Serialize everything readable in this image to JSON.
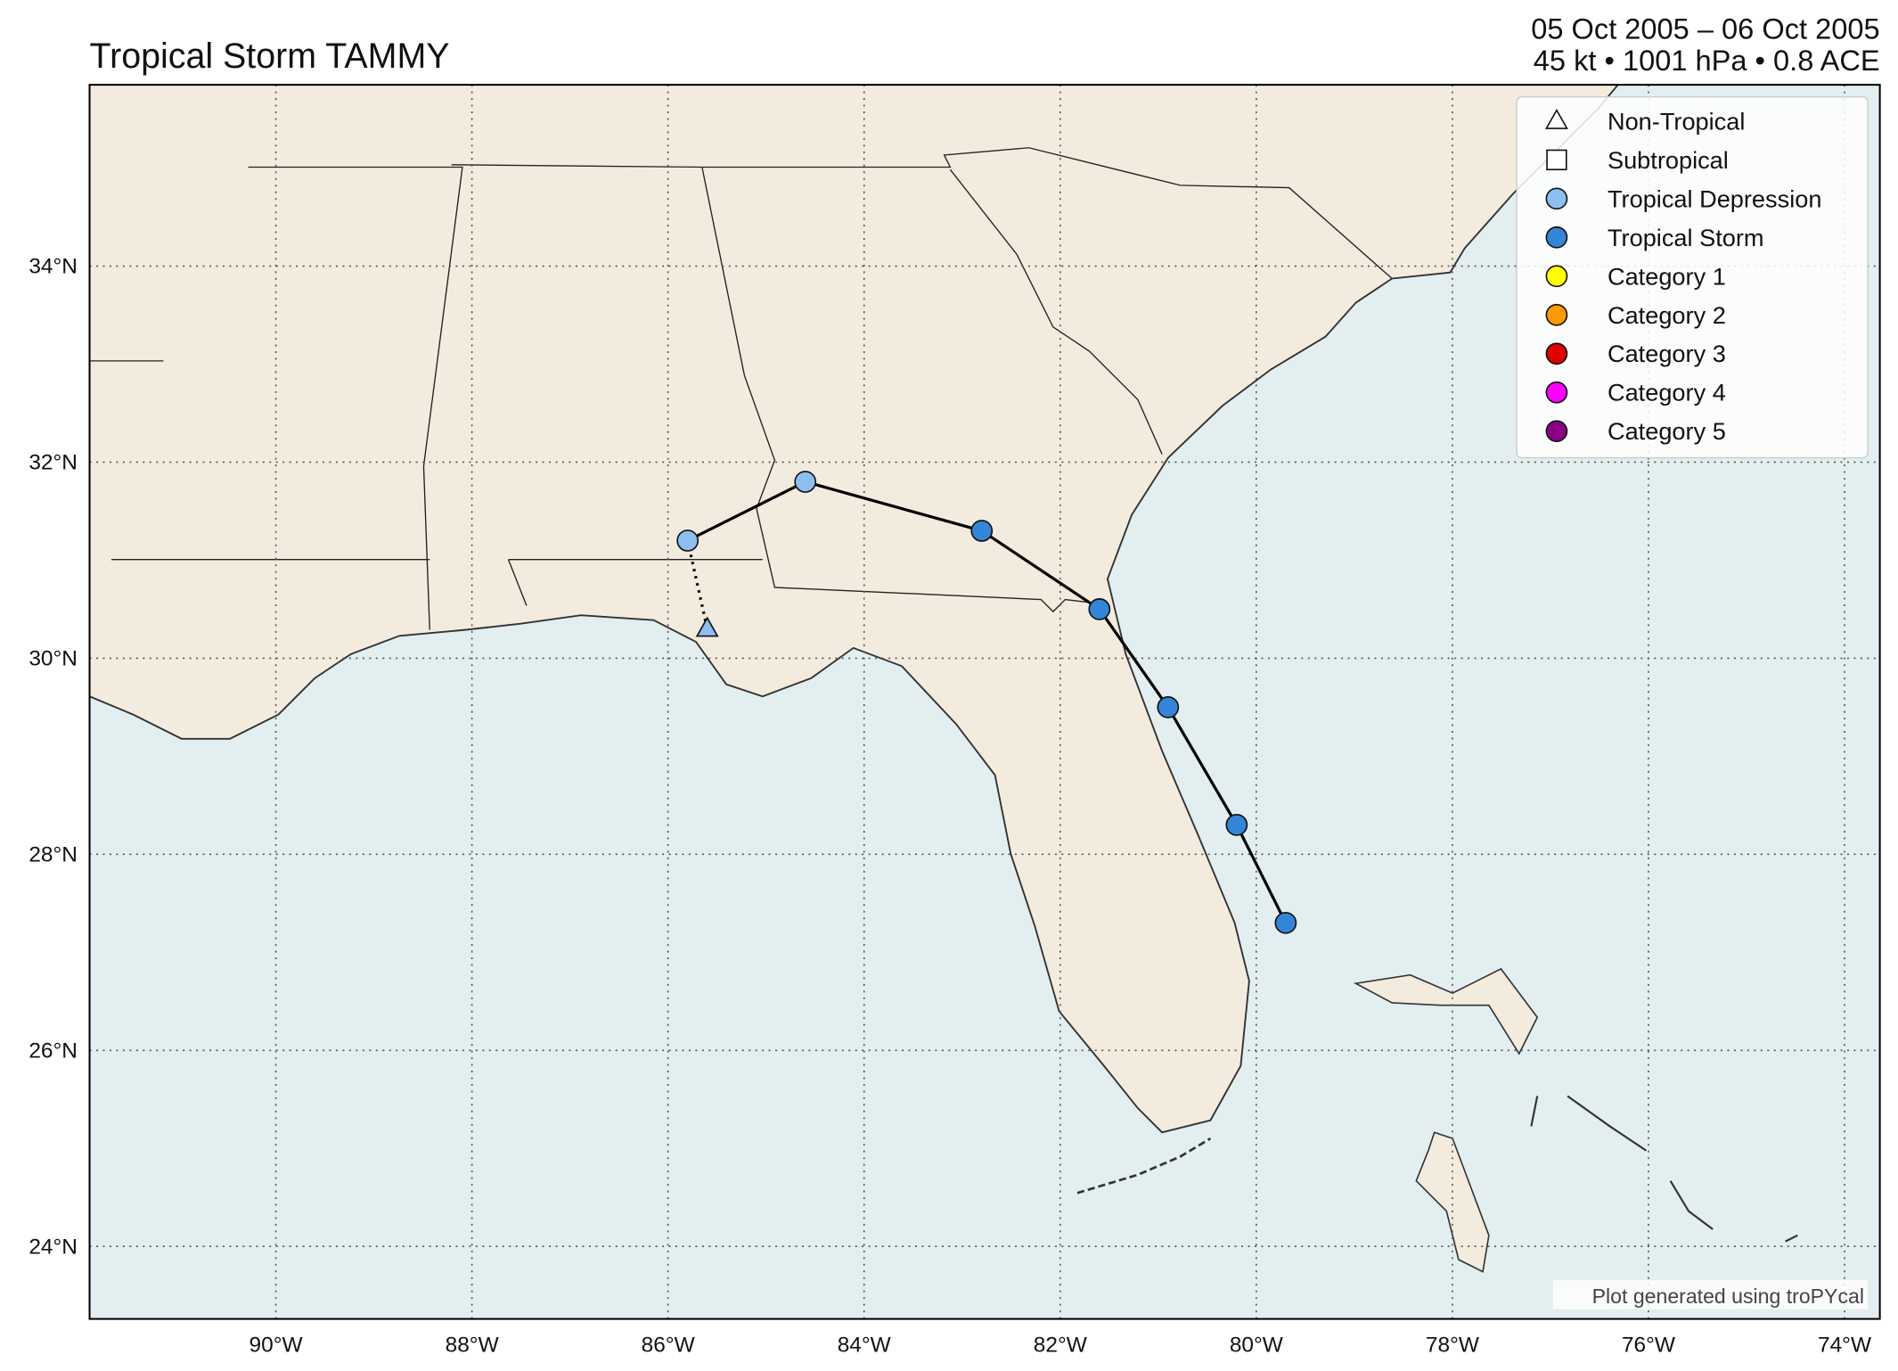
{
  "chart_data": {
    "type": "map",
    "title": "Tropical Storm TAMMY",
    "date_range": "05 Oct 2005 – 06 Oct 2005",
    "stats": "45 kt • 1001 hPa • 0.8 ACE",
    "credit": "Plot generated using troPYcal",
    "xlim": [
      -91.9,
      -73.64
    ],
    "ylim": [
      23.26,
      35.85
    ],
    "xticks": [
      {
        "value": -90,
        "label": "90°W"
      },
      {
        "value": -88,
        "label": "88°W"
      },
      {
        "value": -86,
        "label": "86°W"
      },
      {
        "value": -84,
        "label": "84°W"
      },
      {
        "value": -82,
        "label": "82°W"
      },
      {
        "value": -80,
        "label": "80°W"
      },
      {
        "value": -78,
        "label": "78°W"
      },
      {
        "value": -76,
        "label": "76°W"
      },
      {
        "value": -74,
        "label": "74°W"
      }
    ],
    "yticks": [
      {
        "value": 24,
        "label": "24°N"
      },
      {
        "value": 26,
        "label": "26°N"
      },
      {
        "value": 28,
        "label": "28°N"
      },
      {
        "value": 30,
        "label": "30°N"
      },
      {
        "value": 32,
        "label": "32°N"
      },
      {
        "value": 34,
        "label": "34°N"
      }
    ],
    "grid": true,
    "legend": {
      "position": "upper right",
      "items": [
        {
          "name": "Non-Tropical",
          "marker": "triangle",
          "color": "#ffffff"
        },
        {
          "name": "Subtropical",
          "marker": "square",
          "color": "#ffffff"
        },
        {
          "name": "Tropical Depression",
          "marker": "circle",
          "color": "#8cbff0"
        },
        {
          "name": "Tropical Storm",
          "marker": "circle",
          "color": "#3385d6"
        },
        {
          "name": "Category 1",
          "marker": "circle",
          "color": "#ffff00"
        },
        {
          "name": "Category 2",
          "marker": "circle",
          "color": "#ff9900"
        },
        {
          "name": "Category 3",
          "marker": "circle",
          "color": "#e00000"
        },
        {
          "name": "Category 4",
          "marker": "circle",
          "color": "#ff00ff"
        },
        {
          "name": "Category 5",
          "marker": "circle",
          "color": "#8b0088"
        }
      ]
    },
    "track": [
      {
        "lon": -79.7,
        "lat": 27.3,
        "marker": "circle",
        "color": "#3385d6",
        "line": "solid"
      },
      {
        "lon": -80.2,
        "lat": 28.3,
        "marker": "circle",
        "color": "#3385d6",
        "line": "solid"
      },
      {
        "lon": -80.9,
        "lat": 29.5,
        "marker": "circle",
        "color": "#3385d6",
        "line": "solid"
      },
      {
        "lon": -81.6,
        "lat": 30.5,
        "marker": "circle",
        "color": "#3385d6",
        "line": "solid"
      },
      {
        "lon": -82.8,
        "lat": 31.3,
        "marker": "circle",
        "color": "#3385d6",
        "line": "solid"
      },
      {
        "lon": -84.6,
        "lat": 31.8,
        "marker": "circle",
        "color": "#8cbff0",
        "line": "solid"
      },
      {
        "lon": -85.8,
        "lat": 31.2,
        "marker": "circle",
        "color": "#8cbff0",
        "line": "solid"
      },
      {
        "lon": -85.6,
        "lat": 30.3,
        "marker": "triangle",
        "color": "#8cbff0",
        "line": "dotted"
      }
    ]
  }
}
